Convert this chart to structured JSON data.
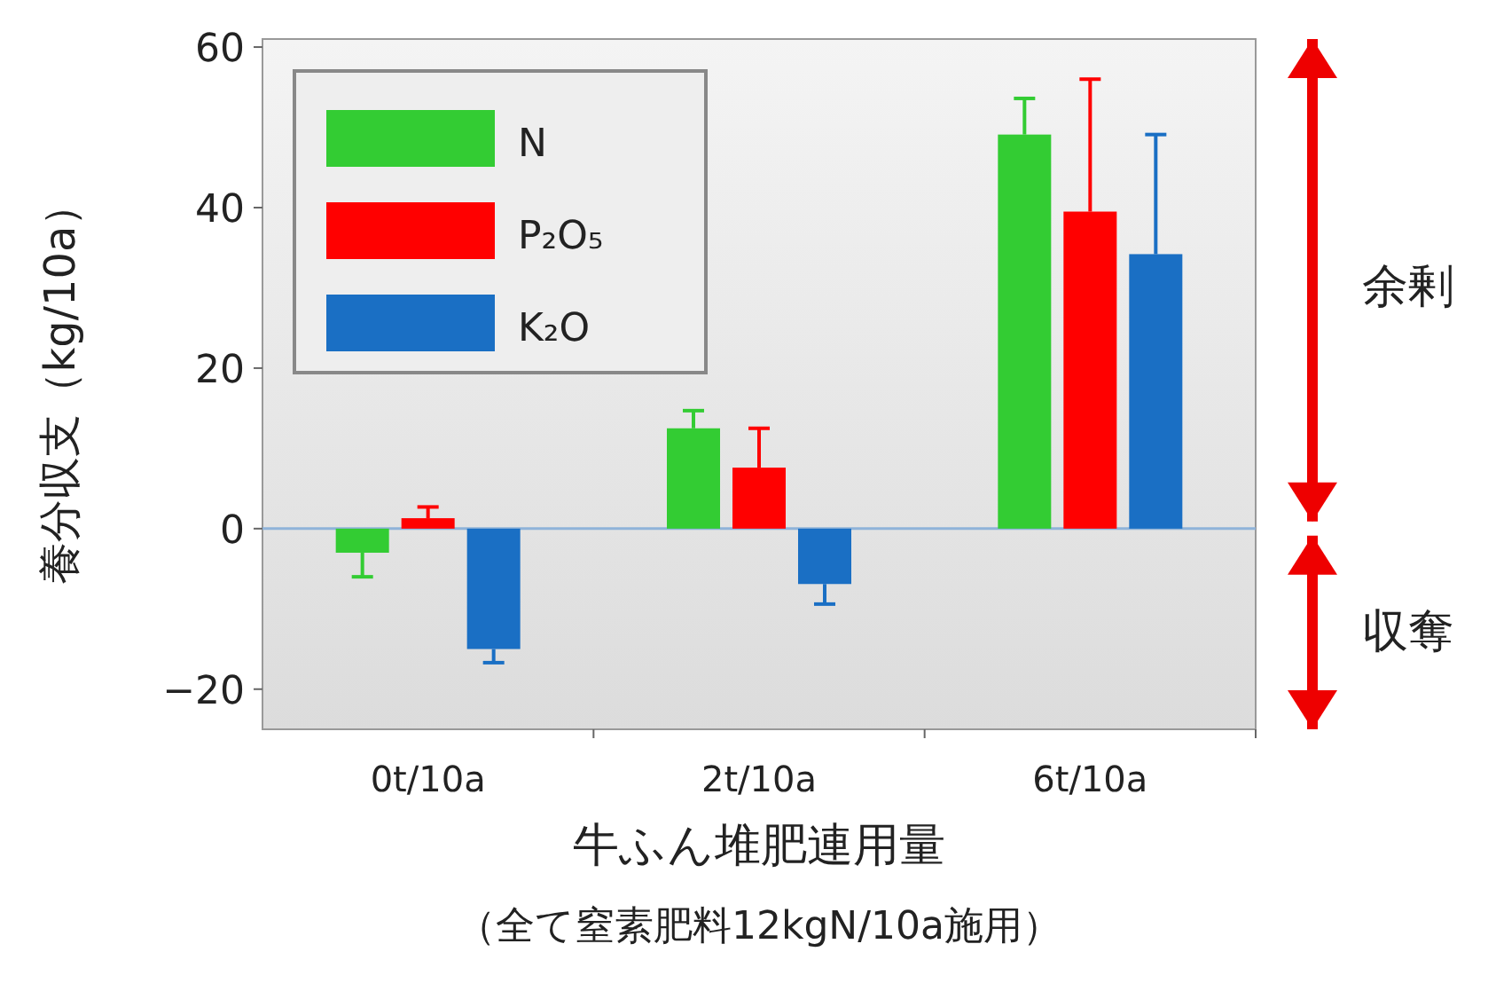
{
  "chart_data": {
    "type": "bar",
    "xlabel": "牛ふん堆肥連用量",
    "ylabel": "養分収支（kg/10a）",
    "categories": [
      "0t/10a",
      "2t/10a",
      "6t/10a"
    ],
    "series": [
      {
        "name": "N",
        "color": "#33cc33",
        "values": [
          -3,
          12.5,
          49.1
        ],
        "errors": [
          [
            -6,
            -3
          ],
          [
            12.5,
            14.7
          ],
          [
            49.1,
            53.6
          ]
        ]
      },
      {
        "name": "P₂O₅",
        "color": "#ff0000",
        "values": [
          1.3,
          7.6,
          39.5
        ],
        "errors": [
          [
            1.3,
            2.7
          ],
          [
            7.6,
            12.5
          ],
          [
            39.5,
            56
          ]
        ]
      },
      {
        "name": "K₂O",
        "color": "#1a6fc4",
        "values": [
          -15,
          -6.9,
          34.2
        ],
        "errors": [
          [
            -16.7,
            -15
          ],
          [
            -9.4,
            -6.9
          ],
          [
            34.2,
            49.1
          ]
        ]
      }
    ],
    "ylim": [
      -25,
      61
    ],
    "yticks": [
      {
        "value": -20,
        "label": "−20"
      },
      0,
      20,
      40,
      60
    ],
    "grid": false,
    "legend": "top left",
    "ref_lines": [
      {
        "axis": "y",
        "value": 0,
        "color": "#8fb3d9"
      }
    ],
    "annotations": [
      "余剰",
      "収奪",
      "（全て窒素肥料12kgN/10a施用）"
    ]
  }
}
